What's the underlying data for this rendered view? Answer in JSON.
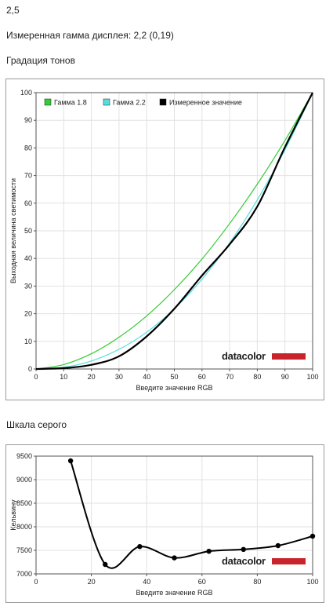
{
  "header": {
    "value_text": "2,5",
    "measured_gamma_text": "Измеренная гамма дисплея: 2,2 (0,19)",
    "gradation_title": "Градация тонов",
    "grayscale_title": "Шкала серого"
  },
  "logo": {
    "text": "datacolor",
    "bar_color": "#c8242b"
  },
  "chart_data": [
    {
      "type": "line",
      "title": "Градация тонов",
      "xlabel": "Введите значение RGB",
      "ylabel": "Выходная величина светимости",
      "xlim": [
        0,
        100
      ],
      "ylim": [
        0,
        100
      ],
      "x_ticks": [
        0,
        10,
        20,
        30,
        40,
        50,
        60,
        70,
        80,
        90,
        100
      ],
      "y_ticks": [
        0,
        10,
        20,
        30,
        40,
        50,
        60,
        70,
        80,
        90,
        100
      ],
      "grid": true,
      "legend_position": "top-left",
      "x": [
        0,
        10,
        20,
        30,
        40,
        50,
        60,
        70,
        80,
        90,
        100
      ],
      "series": [
        {
          "name": "Гамма 1.8",
          "color": "#33cc33",
          "values": [
            0,
            1.6,
            5.5,
            11.5,
            19.2,
            28.7,
            39.8,
            52.6,
            66.9,
            82.7,
            100
          ]
        },
        {
          "name": "Гамма 2.2",
          "color": "#55dddd",
          "values": [
            0,
            0.6,
            2.9,
            7.1,
            13.3,
            21.8,
            32.5,
            45.6,
            61.2,
            79.3,
            100
          ]
        },
        {
          "name": "Измеренное значение",
          "color": "#000000",
          "values": [
            0,
            0.3,
            1.5,
            4.6,
            11.8,
            21.8,
            33.8,
            45.1,
            58.8,
            80.3,
            100
          ]
        }
      ]
    },
    {
      "type": "line",
      "title": "Шкала серого",
      "xlabel": "Введите значение RGB",
      "ylabel": "Кельвину",
      "xlim": [
        0,
        100
      ],
      "ylim": [
        7000,
        9500
      ],
      "x_ticks": [
        0,
        20,
        40,
        60,
        80,
        100
      ],
      "y_ticks": [
        7000,
        7500,
        8000,
        8500,
        9000,
        9500
      ],
      "grid": true,
      "series": [
        {
          "name": "",
          "color": "#000000",
          "x": [
            12.5,
            25,
            37.5,
            50,
            62.5,
            75,
            87.5,
            100
          ],
          "values": [
            9400,
            7200,
            7580,
            7340,
            7480,
            7520,
            7600,
            7800
          ]
        }
      ]
    }
  ]
}
